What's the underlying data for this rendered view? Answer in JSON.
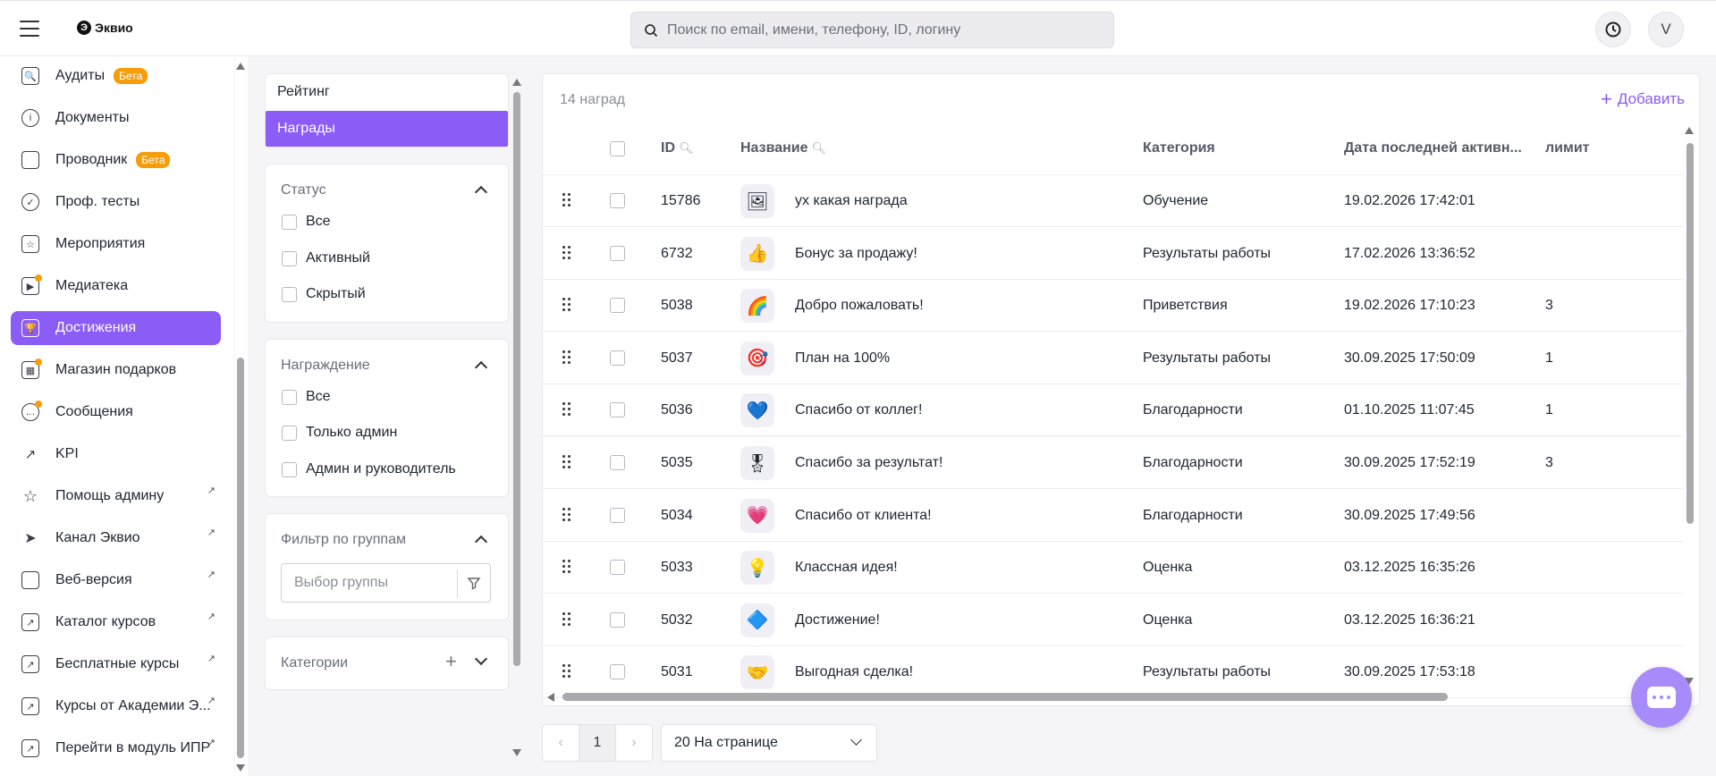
{
  "app": {
    "logo_text": "Эквио"
  },
  "header": {
    "search_placeholder": "Поиск по email, имени, телефону, ID, логину",
    "avatar_letter": "V"
  },
  "sidebar": {
    "items": [
      {
        "label": "Аудиты",
        "icon": "audit-icon",
        "badge": "Бета"
      },
      {
        "label": "Документы",
        "icon": "info-icon"
      },
      {
        "label": "Проводник",
        "icon": "folder-icon",
        "badge": "Бета"
      },
      {
        "label": "Проф. тесты",
        "icon": "user-check-icon"
      },
      {
        "label": "Мероприятия",
        "icon": "calendar-icon"
      },
      {
        "label": "Медиатека",
        "icon": "media-icon",
        "dot": true
      },
      {
        "label": "Достижения",
        "icon": "trophy-icon",
        "active": true
      },
      {
        "label": "Магазин подарков",
        "icon": "gift-icon",
        "dot": true
      },
      {
        "label": "Сообщения",
        "icon": "chat-icon",
        "dot": true
      },
      {
        "label": "KPI",
        "icon": "trend-icon"
      },
      {
        "label": "Помощь админу",
        "icon": "star-icon",
        "external": true
      },
      {
        "label": "Канал Эквио",
        "icon": "send-icon",
        "external": true
      },
      {
        "label": "Веб-версия",
        "icon": "monitor-icon",
        "external": true
      },
      {
        "label": "Каталог курсов",
        "icon": "external-link-icon",
        "external": true
      },
      {
        "label": "Бесплатные курсы",
        "icon": "external-link-icon",
        "external": true
      },
      {
        "label": "Курсы от Академии Э...",
        "icon": "external-link-icon",
        "external": true
      },
      {
        "label": "Перейти в модуль ИПР",
        "icon": "external-link-icon",
        "external": true
      }
    ]
  },
  "tabs": {
    "rating": "Рейтинг",
    "awards": "Награды"
  },
  "filters": {
    "status": {
      "title": "Статус",
      "options": [
        "Все",
        "Активный",
        "Скрытый"
      ]
    },
    "awarding": {
      "title": "Награждение",
      "options": [
        "Все",
        "Только админ",
        "Админ и руководитель"
      ]
    },
    "groups": {
      "title": "Фильтр по группам",
      "placeholder": "Выбор группы"
    },
    "categories": {
      "title": "Категории"
    }
  },
  "table": {
    "count_label": "14 наград",
    "add_label": "Добавить",
    "columns": {
      "id": "ID",
      "name": "Название",
      "category": "Категория",
      "last_activity": "Дата последней активн...",
      "limit": "лимит"
    },
    "rows": [
      {
        "id": "15786",
        "name": "ух какая награда",
        "category": "Обучение",
        "date": "19.02.2026 17:42:01",
        "limit": "",
        "thumb": "🖼"
      },
      {
        "id": "6732",
        "name": "Бонус за продажу!",
        "category": "Результаты работы",
        "date": "17.02.2026 13:36:52",
        "limit": "",
        "thumb": "👍"
      },
      {
        "id": "5038",
        "name": "Добро пожаловать!",
        "category": "Приветствия",
        "date": "19.02.2026 17:10:23",
        "limit": "3",
        "thumb": "🌈"
      },
      {
        "id": "5037",
        "name": "План на 100%",
        "category": "Результаты работы",
        "date": "30.09.2025 17:50:09",
        "limit": "1",
        "thumb": "🎯"
      },
      {
        "id": "5036",
        "name": "Спасибо от коллег!",
        "category": "Благодарности",
        "date": "01.10.2025 11:07:45",
        "limit": "1",
        "thumb": "💙"
      },
      {
        "id": "5035",
        "name": "Спасибо за результат!",
        "category": "Благодарности",
        "date": "30.09.2025 17:52:19",
        "limit": "3",
        "thumb": "🎖"
      },
      {
        "id": "5034",
        "name": "Спасибо от клиента!",
        "category": "Благодарности",
        "date": "30.09.2025 17:49:56",
        "limit": "",
        "thumb": "💗"
      },
      {
        "id": "5033",
        "name": "Классная идея!",
        "category": "Оценка",
        "date": "03.12.2025 16:35:26",
        "limit": "",
        "thumb": "💡"
      },
      {
        "id": "5032",
        "name": "Достижение!",
        "category": "Оценка",
        "date": "03.12.2025 16:36:21",
        "limit": "",
        "thumb": "🔷"
      },
      {
        "id": "5031",
        "name": "Выгодная сделка!",
        "category": "Результаты работы",
        "date": "30.09.2025 17:53:18",
        "limit": "",
        "thumb": "🤝"
      }
    ]
  },
  "pagination": {
    "current_page": "1",
    "per_page_label": "20 На странице"
  },
  "colors": {
    "accent": "#8b5cf6",
    "badge": "#f59e0b"
  }
}
